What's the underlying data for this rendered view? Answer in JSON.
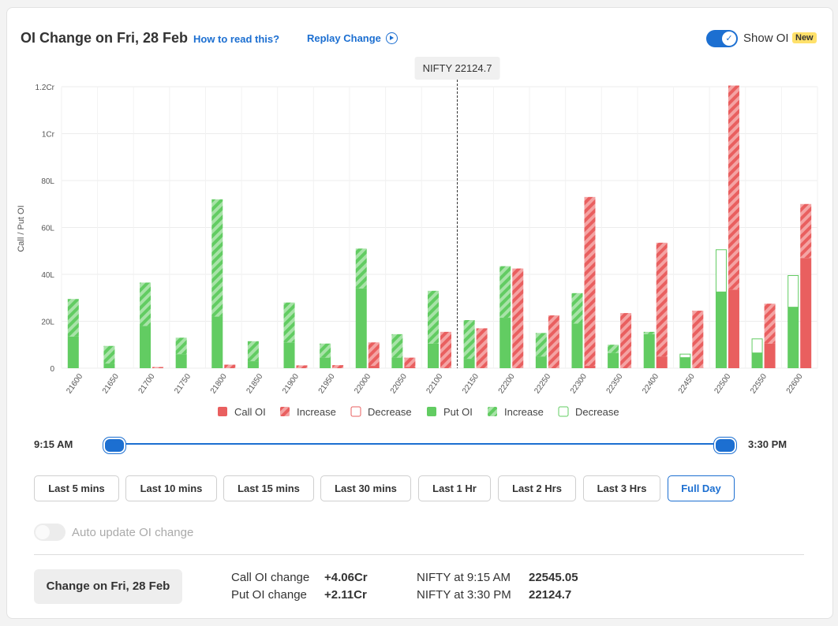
{
  "header": {
    "title": "OI Change on Fri, 28 Feb",
    "how_to_read": "How to read this?",
    "replay": "Replay Change",
    "show_oi": "Show OI",
    "new_badge": "New"
  },
  "chart_data": {
    "type": "bar",
    "spot_label": "NIFTY 22124.7",
    "spot_value": 22124.7,
    "ylabel": "Call / Put OI",
    "y_ticks": [
      "0",
      "20L",
      "40L",
      "60L",
      "80L",
      "1Cr",
      "1.2Cr"
    ],
    "ylim": [
      0,
      120
    ],
    "y_unit": "Lakh",
    "categories": [
      "21600",
      "21650",
      "21700",
      "21750",
      "21800",
      "21850",
      "21900",
      "21950",
      "22000",
      "22050",
      "22100",
      "22150",
      "22200",
      "22250",
      "22300",
      "22350",
      "22400",
      "22450",
      "22500",
      "22550",
      "22600"
    ],
    "put_oi": [
      13.5,
      2,
      18,
      6,
      22,
      3,
      11,
      4.5,
      34,
      4.5,
      10.5,
      4,
      21.5,
      5,
      19,
      6.5,
      14.5,
      4.5,
      32.5,
      6.5,
      26
    ],
    "put_increase": [
      16,
      7.5,
      18.5,
      7,
      50,
      8.5,
      17,
      6,
      17,
      10,
      22.5,
      16.5,
      22,
      10,
      13,
      3.5,
      1,
      0,
      0,
      0,
      0
    ],
    "put_decrease": [
      0,
      0,
      0,
      0,
      0,
      0,
      0,
      0,
      0,
      0,
      0,
      0,
      0,
      0,
      0,
      0,
      0,
      1.5,
      18,
      6,
      13.5
    ],
    "call_oi": [
      0,
      0,
      0,
      0,
      0,
      0,
      0,
      0,
      1,
      0.5,
      0,
      0,
      0,
      0,
      1,
      0,
      5,
      0,
      33.5,
      10.5,
      47
    ],
    "call_increase": [
      0,
      0,
      0.5,
      0,
      1.5,
      0,
      1.2,
      1.3,
      10,
      4,
      15.5,
      17,
      42.5,
      22.5,
      72,
      23.5,
      48.5,
      24.5,
      87,
      17,
      23
    ],
    "call_decrease": [
      0,
      0,
      0,
      0,
      0,
      0,
      0,
      0,
      0,
      0,
      0,
      0,
      0,
      0,
      0,
      0,
      0,
      0,
      0,
      0,
      0
    ],
    "legend": [
      "Call OI",
      "Increase",
      "Decrease",
      "Put OI",
      "Increase",
      "Decrease"
    ],
    "colors": {
      "call": "#e95f5f",
      "call_light": "#f4a3a3",
      "put": "#62cc62",
      "put_light": "#a8e3a8"
    },
    "grid": true
  },
  "slider": {
    "start": "9:15 AM",
    "end": "3:30 PM"
  },
  "ranges": [
    "Last 5 mins",
    "Last 10 mins",
    "Last 15 mins",
    "Last 30 mins",
    "Last 1 Hr",
    "Last 2 Hrs",
    "Last 3 Hrs",
    "Full Day"
  ],
  "active_range": "Full Day",
  "auto_update": "Auto update OI change",
  "summary": {
    "change_button": "Change on Fri, 28 Feb",
    "call_label": "Call OI change",
    "call_value": "+4.06Cr",
    "put_label": "Put OI change",
    "put_value": "+2.11Cr",
    "nifty_open_label": "NIFTY at 9:15 AM",
    "nifty_open_value": "22545.05",
    "nifty_close_label": "NIFTY at 3:30 PM",
    "nifty_close_value": "22124.7"
  }
}
